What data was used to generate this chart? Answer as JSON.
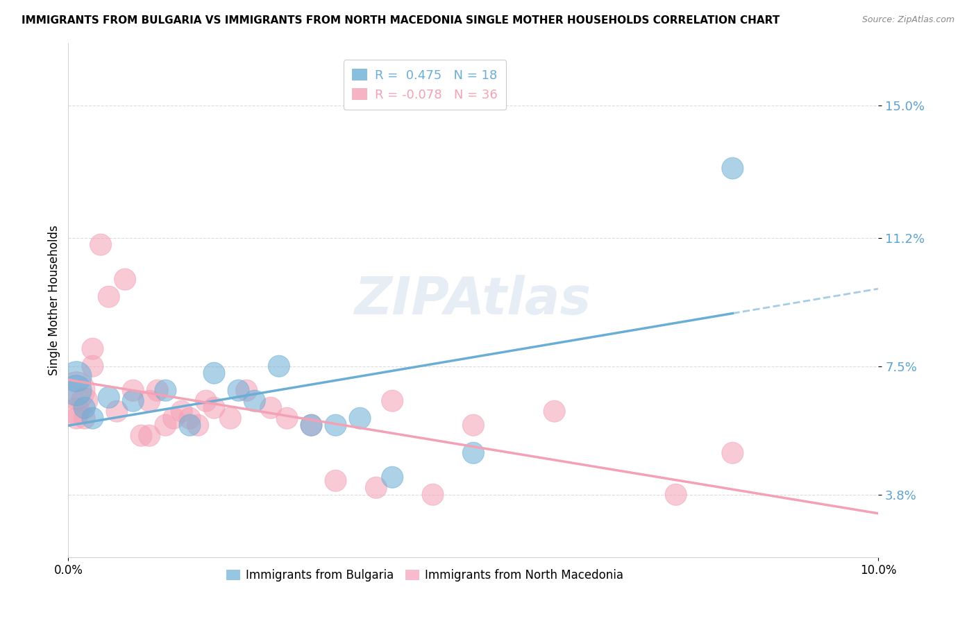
{
  "title": "IMMIGRANTS FROM BULGARIA VS IMMIGRANTS FROM NORTH MACEDONIA SINGLE MOTHER HOUSEHOLDS CORRELATION CHART",
  "source": "Source: ZipAtlas.com",
  "ylabel": "Single Mother Households",
  "yticks": [
    "3.8%",
    "7.5%",
    "11.2%",
    "15.0%"
  ],
  "ytick_vals": [
    0.038,
    0.075,
    0.112,
    0.15
  ],
  "xlim": [
    0.0,
    0.1
  ],
  "ylim": [
    0.02,
    0.168
  ],
  "r_bulgaria": 0.475,
  "n_bulgaria": 18,
  "r_macedonia": -0.078,
  "n_macedonia": 36,
  "legend_label_1": "Immigrants from Bulgaria",
  "legend_label_2": "Immigrants from North Macedonia",
  "color_bulgaria": "#6aaed6",
  "color_macedonia": "#f4a0b5",
  "bg_color": "#ffffff",
  "bulgaria_x": [
    0.001,
    0.001,
    0.002,
    0.003,
    0.005,
    0.008,
    0.012,
    0.015,
    0.018,
    0.021,
    0.023,
    0.026,
    0.03,
    0.033,
    0.036,
    0.04,
    0.05,
    0.082
  ],
  "bulgaria_y": [
    0.068,
    0.072,
    0.063,
    0.06,
    0.066,
    0.065,
    0.068,
    0.058,
    0.073,
    0.068,
    0.065,
    0.075,
    0.058,
    0.058,
    0.06,
    0.043,
    0.05,
    0.132
  ],
  "bulgaria_size": [
    200,
    200,
    100,
    100,
    100,
    100,
    100,
    100,
    100,
    100,
    100,
    100,
    100,
    100,
    100,
    100,
    100,
    100
  ],
  "macedonia_x": [
    0.001,
    0.001,
    0.001,
    0.002,
    0.002,
    0.003,
    0.003,
    0.004,
    0.005,
    0.006,
    0.007,
    0.008,
    0.009,
    0.01,
    0.01,
    0.011,
    0.012,
    0.013,
    0.014,
    0.015,
    0.016,
    0.017,
    0.018,
    0.02,
    0.022,
    0.025,
    0.027,
    0.03,
    0.033,
    0.038,
    0.04,
    0.045,
    0.05,
    0.06,
    0.075,
    0.082
  ],
  "macedonia_y": [
    0.068,
    0.062,
    0.06,
    0.065,
    0.06,
    0.08,
    0.075,
    0.11,
    0.095,
    0.062,
    0.1,
    0.068,
    0.055,
    0.065,
    0.055,
    0.068,
    0.058,
    0.06,
    0.062,
    0.06,
    0.058,
    0.065,
    0.063,
    0.06,
    0.068,
    0.063,
    0.06,
    0.058,
    0.042,
    0.04,
    0.065,
    0.038,
    0.058,
    0.062,
    0.038,
    0.05
  ],
  "macedonia_size": [
    300,
    150,
    100,
    150,
    100,
    100,
    100,
    100,
    100,
    100,
    100,
    100,
    100,
    100,
    100,
    100,
    100,
    100,
    100,
    100,
    100,
    100,
    100,
    100,
    100,
    100,
    100,
    100,
    100,
    100,
    100,
    100,
    100,
    100,
    100,
    100
  ],
  "bulgaria_line_x": [
    0.0,
    0.082
  ],
  "macedonia_line_x": [
    0.0,
    0.1
  ],
  "dashed_line_x": [
    0.082,
    0.1
  ]
}
